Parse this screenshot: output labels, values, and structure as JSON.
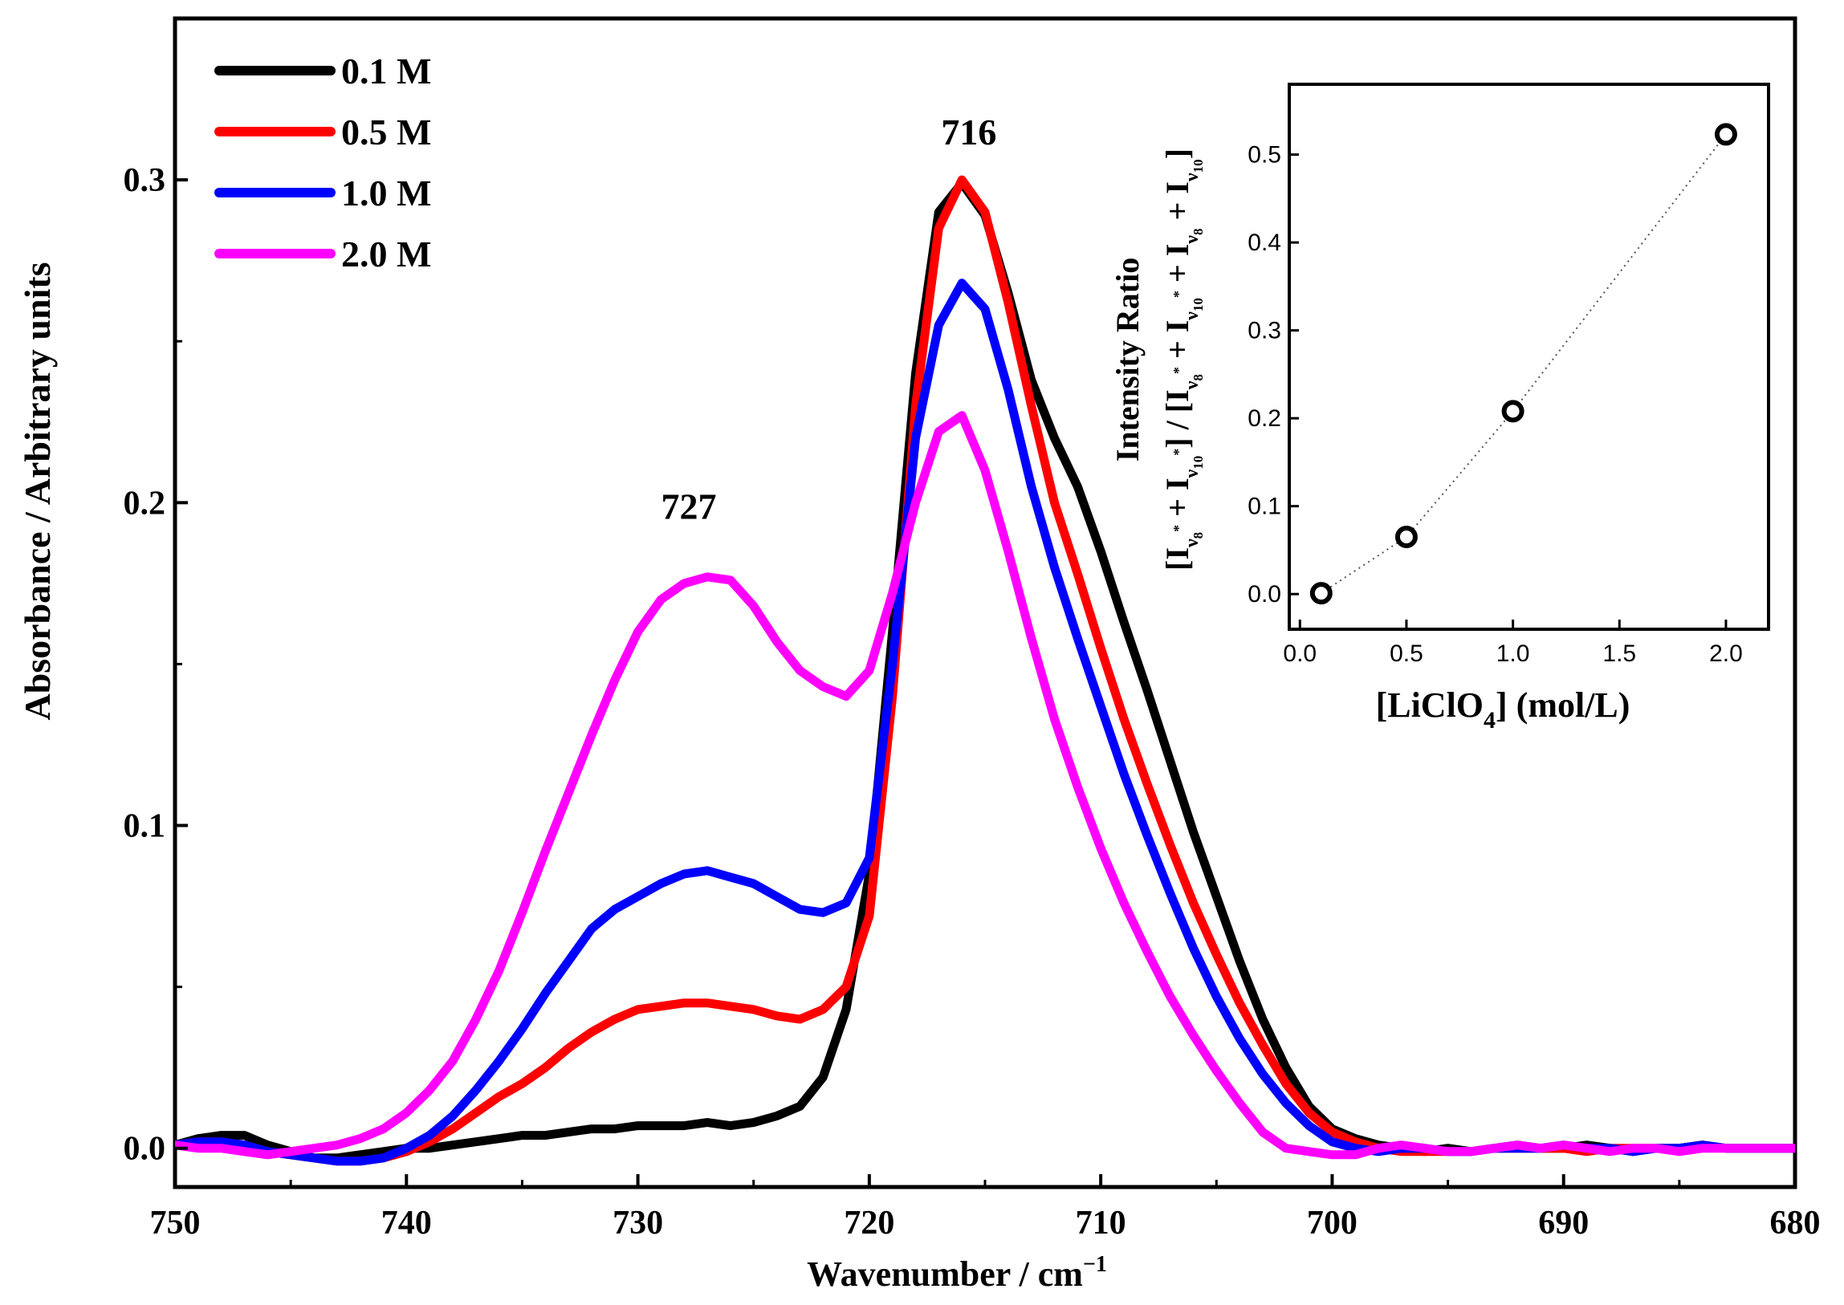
{
  "chart_data": [
    {
      "type": "line",
      "title": "",
      "xlabel": "Wavenumber / cm",
      "xlabel_superscript": "−1",
      "ylabel": "Absorbance / Arbitrary units",
      "xlim": [
        750,
        680
      ],
      "ylim": [
        -0.012,
        0.35
      ],
      "x_ticks": [
        750,
        740,
        730,
        720,
        710,
        700,
        690,
        680
      ],
      "x_tick_labels": [
        "750",
        "740",
        "730",
        "720",
        "710",
        "700",
        "690",
        "680"
      ],
      "y_ticks": [
        0.0,
        0.1,
        0.2,
        0.3
      ],
      "y_tick_labels": [
        "0.0",
        "0.1",
        "0.2",
        "0.3"
      ],
      "grid": false,
      "legend_position": "top-left",
      "annotations": [
        {
          "text": "716",
          "x": 715.7,
          "y": 0.311
        },
        {
          "text": "727",
          "x": 727.8,
          "y": 0.195
        }
      ],
      "series": [
        {
          "name": "0.1 M",
          "color": "#000000",
          "x": [
            750,
            749,
            748,
            747,
            746,
            745,
            744,
            743,
            742,
            741,
            740,
            739,
            738,
            737,
            736,
            735,
            734,
            733,
            732,
            731,
            730,
            729,
            728,
            727,
            726,
            725,
            724,
            723,
            722,
            721,
            720,
            719,
            718,
            717,
            716,
            715,
            714,
            713,
            712,
            711,
            710,
            709,
            708,
            707,
            706,
            705,
            704,
            703,
            702,
            701,
            700,
            699,
            698,
            697,
            696,
            695,
            694,
            693,
            692,
            691,
            690,
            689,
            688,
            687,
            686,
            685,
            684,
            683,
            682,
            681,
            680
          ],
          "y": [
            0.001,
            0.003,
            0.004,
            0.004,
            0.001,
            -0.001,
            -0.003,
            -0.003,
            -0.002,
            -0.001,
            0.0,
            0.0,
            0.001,
            0.002,
            0.003,
            0.004,
            0.004,
            0.005,
            0.006,
            0.006,
            0.007,
            0.007,
            0.007,
            0.008,
            0.007,
            0.008,
            0.01,
            0.013,
            0.022,
            0.043,
            0.085,
            0.16,
            0.24,
            0.29,
            0.299,
            0.289,
            0.265,
            0.238,
            0.22,
            0.205,
            0.185,
            0.163,
            0.142,
            0.12,
            0.098,
            0.078,
            0.058,
            0.04,
            0.025,
            0.013,
            0.006,
            0.003,
            0.001,
            0.0,
            -0.001,
            0.0,
            -0.001,
            0.0,
            0.001,
            0.0,
            0.0,
            0.001,
            0.0,
            -0.001,
            0.0,
            0.0,
            0.001,
            0.0,
            0.0,
            0.0,
            0.0
          ]
        },
        {
          "name": "0.5 M",
          "color": "#ff0000",
          "x": [
            750,
            749,
            748,
            747,
            746,
            745,
            744,
            743,
            742,
            741,
            740,
            739,
            738,
            737,
            736,
            735,
            734,
            733,
            732,
            731,
            730,
            729,
            728,
            727,
            726,
            725,
            724,
            723,
            722,
            721,
            720,
            719,
            718,
            717,
            716,
            715,
            714,
            713,
            712,
            711,
            710,
            709,
            708,
            707,
            706,
            705,
            704,
            703,
            702,
            701,
            700,
            699,
            698,
            697,
            696,
            695,
            694,
            693,
            692,
            691,
            690,
            689,
            688,
            687,
            686,
            685,
            684,
            683,
            682,
            681,
            680
          ],
          "y": [
            0.001,
            0.002,
            0.002,
            0.001,
            -0.001,
            -0.002,
            -0.003,
            -0.004,
            -0.004,
            -0.003,
            -0.001,
            0.002,
            0.006,
            0.011,
            0.016,
            0.02,
            0.025,
            0.031,
            0.036,
            0.04,
            0.043,
            0.044,
            0.045,
            0.045,
            0.044,
            0.043,
            0.041,
            0.04,
            0.043,
            0.05,
            0.072,
            0.14,
            0.23,
            0.285,
            0.3,
            0.29,
            0.262,
            0.23,
            0.2,
            0.178,
            0.155,
            0.133,
            0.113,
            0.094,
            0.076,
            0.06,
            0.045,
            0.032,
            0.02,
            0.011,
            0.005,
            0.002,
            0.0,
            -0.001,
            -0.001,
            -0.001,
            -0.001,
            0.0,
            0.0,
            0.0,
            0.0,
            -0.001,
            0.0,
            0.0,
            0.0,
            0.0,
            0.001,
            0.0,
            0.0,
            0.0,
            0.0
          ]
        },
        {
          "name": "1.0 M",
          "color": "#0000ff",
          "x": [
            750,
            749,
            748,
            747,
            746,
            745,
            744,
            743,
            742,
            741,
            740,
            739,
            738,
            737,
            736,
            735,
            734,
            733,
            732,
            731,
            730,
            729,
            728,
            727,
            726,
            725,
            724,
            723,
            722,
            721,
            720,
            719,
            718,
            717,
            716,
            715,
            714,
            713,
            712,
            711,
            710,
            709,
            708,
            707,
            706,
            705,
            704,
            703,
            702,
            701,
            700,
            699,
            698,
            697,
            696,
            695,
            694,
            693,
            692,
            691,
            690,
            689,
            688,
            687,
            686,
            685,
            684,
            683,
            682,
            681,
            680
          ],
          "y": [
            0.001,
            0.002,
            0.002,
            0.001,
            -0.001,
            -0.002,
            -0.003,
            -0.004,
            -0.004,
            -0.003,
            0.0,
            0.004,
            0.01,
            0.018,
            0.027,
            0.037,
            0.048,
            0.058,
            0.068,
            0.074,
            0.078,
            0.082,
            0.085,
            0.086,
            0.084,
            0.082,
            0.078,
            0.074,
            0.073,
            0.076,
            0.09,
            0.15,
            0.22,
            0.255,
            0.268,
            0.26,
            0.235,
            0.205,
            0.18,
            0.158,
            0.137,
            0.116,
            0.097,
            0.079,
            0.062,
            0.047,
            0.034,
            0.023,
            0.014,
            0.007,
            0.002,
            0.0,
            -0.001,
            0.0,
            0.0,
            -0.001,
            -0.001,
            0.0,
            0.0,
            0.0,
            0.001,
            0.0,
            0.0,
            -0.001,
            0.0,
            0.0,
            0.001,
            0.0,
            0.0,
            0.0,
            0.0
          ]
        },
        {
          "name": "2.0 M",
          "color": "#ff00ff",
          "x": [
            750,
            749,
            748,
            747,
            746,
            745,
            744,
            743,
            742,
            741,
            740,
            739,
            738,
            737,
            736,
            735,
            734,
            733,
            732,
            731,
            730,
            729,
            728,
            727,
            726,
            725,
            724,
            723,
            722,
            721,
            720,
            719,
            718,
            717,
            716,
            715,
            714,
            713,
            712,
            711,
            710,
            709,
            708,
            707,
            706,
            705,
            704,
            703,
            702,
            701,
            700,
            699,
            698,
            697,
            696,
            695,
            694,
            693,
            692,
            691,
            690,
            689,
            688,
            687,
            686,
            685,
            684,
            683,
            682,
            681,
            680
          ],
          "y": [
            0.001,
            0.0,
            0.0,
            -0.001,
            -0.002,
            -0.001,
            0.0,
            0.001,
            0.003,
            0.006,
            0.011,
            0.018,
            0.027,
            0.04,
            0.055,
            0.073,
            0.092,
            0.11,
            0.128,
            0.145,
            0.16,
            0.17,
            0.175,
            0.177,
            0.176,
            0.168,
            0.157,
            0.148,
            0.143,
            0.14,
            0.148,
            0.172,
            0.2,
            0.222,
            0.227,
            0.21,
            0.185,
            0.158,
            0.133,
            0.112,
            0.093,
            0.076,
            0.061,
            0.047,
            0.035,
            0.024,
            0.014,
            0.005,
            0.0,
            -0.001,
            -0.002,
            -0.002,
            0.0,
            0.001,
            0.0,
            -0.001,
            -0.001,
            0.0,
            0.001,
            0.0,
            0.001,
            0.0,
            -0.001,
            0.0,
            0.0,
            -0.001,
            0.0,
            0.0,
            0.0,
            0.0,
            0.0
          ]
        }
      ]
    },
    {
      "type": "scatter",
      "title": "",
      "xlabel": "[LiClO4] (mol/L)",
      "ylabel": "Intensity Ratio [I + I] / [I + I + I + I]",
      "xlim": [
        -0.05,
        2.2
      ],
      "ylim": [
        -0.04,
        0.58
      ],
      "x_ticks": [
        0.0,
        0.5,
        1.0,
        1.5,
        2.0
      ],
      "x_tick_labels": [
        "0.0",
        "0.5",
        "1.0",
        "1.5",
        "2.0"
      ],
      "y_ticks": [
        0.0,
        0.1,
        0.2,
        0.3,
        0.4,
        0.5
      ],
      "y_tick_labels": [
        "0.0",
        "0.1",
        "0.2",
        "0.3",
        "0.4",
        "0.5"
      ],
      "grid": false,
      "x": [
        0.1,
        0.5,
        1.0,
        2.0
      ],
      "y": [
        0.001,
        0.065,
        0.208,
        0.523
      ],
      "fit_line": "dotted"
    }
  ]
}
